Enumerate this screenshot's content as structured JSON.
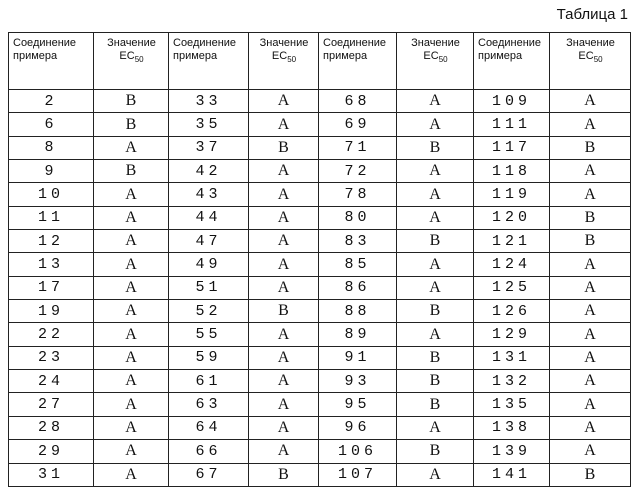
{
  "caption": "Таблица 1",
  "headers": {
    "compound_line1": "Соединение",
    "compound_line2": "примера",
    "value_line1": "Значение",
    "value_ec": "EC",
    "value_sub": "50"
  },
  "groups": [
    {
      "rows": [
        {
          "compound": "2",
          "value": "B"
        },
        {
          "compound": "6",
          "value": "B"
        },
        {
          "compound": "8",
          "value": "A"
        },
        {
          "compound": "9",
          "value": "B"
        },
        {
          "compound": "10",
          "value": "A"
        },
        {
          "compound": "11",
          "value": "A"
        },
        {
          "compound": "12",
          "value": "A"
        },
        {
          "compound": "13",
          "value": "A"
        },
        {
          "compound": "17",
          "value": "A"
        },
        {
          "compound": "19",
          "value": "A"
        },
        {
          "compound": "22",
          "value": "A"
        },
        {
          "compound": "23",
          "value": "A"
        },
        {
          "compound": "24",
          "value": "A"
        },
        {
          "compound": "27",
          "value": "A"
        },
        {
          "compound": "28",
          "value": "A"
        },
        {
          "compound": "29",
          "value": "A"
        },
        {
          "compound": "31",
          "value": "A"
        }
      ]
    },
    {
      "rows": [
        {
          "compound": "33",
          "value": "A"
        },
        {
          "compound": "35",
          "value": "A"
        },
        {
          "compound": "37",
          "value": "B"
        },
        {
          "compound": "42",
          "value": "A"
        },
        {
          "compound": "43",
          "value": "A"
        },
        {
          "compound": "44",
          "value": "A"
        },
        {
          "compound": "47",
          "value": "A"
        },
        {
          "compound": "49",
          "value": "A"
        },
        {
          "compound": "51",
          "value": "A"
        },
        {
          "compound": "52",
          "value": "B"
        },
        {
          "compound": "55",
          "value": "A"
        },
        {
          "compound": "59",
          "value": "A"
        },
        {
          "compound": "61",
          "value": "A"
        },
        {
          "compound": "63",
          "value": "A"
        },
        {
          "compound": "64",
          "value": "A"
        },
        {
          "compound": "66",
          "value": "A"
        },
        {
          "compound": "67",
          "value": "B"
        }
      ]
    },
    {
      "rows": [
        {
          "compound": "68",
          "value": "A"
        },
        {
          "compound": "69",
          "value": "A"
        },
        {
          "compound": "71",
          "value": "B"
        },
        {
          "compound": "72",
          "value": "A"
        },
        {
          "compound": "78",
          "value": "A"
        },
        {
          "compound": "80",
          "value": "A"
        },
        {
          "compound": "83",
          "value": "B"
        },
        {
          "compound": "85",
          "value": "A"
        },
        {
          "compound": "86",
          "value": "A"
        },
        {
          "compound": "88",
          "value": "B"
        },
        {
          "compound": "89",
          "value": "A"
        },
        {
          "compound": "91",
          "value": "B"
        },
        {
          "compound": "93",
          "value": "B"
        },
        {
          "compound": "95",
          "value": "B"
        },
        {
          "compound": "96",
          "value": "A"
        },
        {
          "compound": "106",
          "value": "B"
        },
        {
          "compound": "107",
          "value": "A"
        }
      ]
    },
    {
      "rows": [
        {
          "compound": "109",
          "value": "A"
        },
        {
          "compound": "111",
          "value": "A"
        },
        {
          "compound": "117",
          "value": "B"
        },
        {
          "compound": "118",
          "value": "A"
        },
        {
          "compound": "119",
          "value": "A"
        },
        {
          "compound": "120",
          "value": "B"
        },
        {
          "compound": "121",
          "value": "B"
        },
        {
          "compound": "124",
          "value": "A"
        },
        {
          "compound": "125",
          "value": "A"
        },
        {
          "compound": "126",
          "value": "A"
        },
        {
          "compound": "129",
          "value": "A"
        },
        {
          "compound": "131",
          "value": "A"
        },
        {
          "compound": "132",
          "value": "A"
        },
        {
          "compound": "135",
          "value": "A"
        },
        {
          "compound": "138",
          "value": "A"
        },
        {
          "compound": "139",
          "value": "A"
        },
        {
          "compound": "141",
          "value": "B"
        }
      ]
    }
  ]
}
